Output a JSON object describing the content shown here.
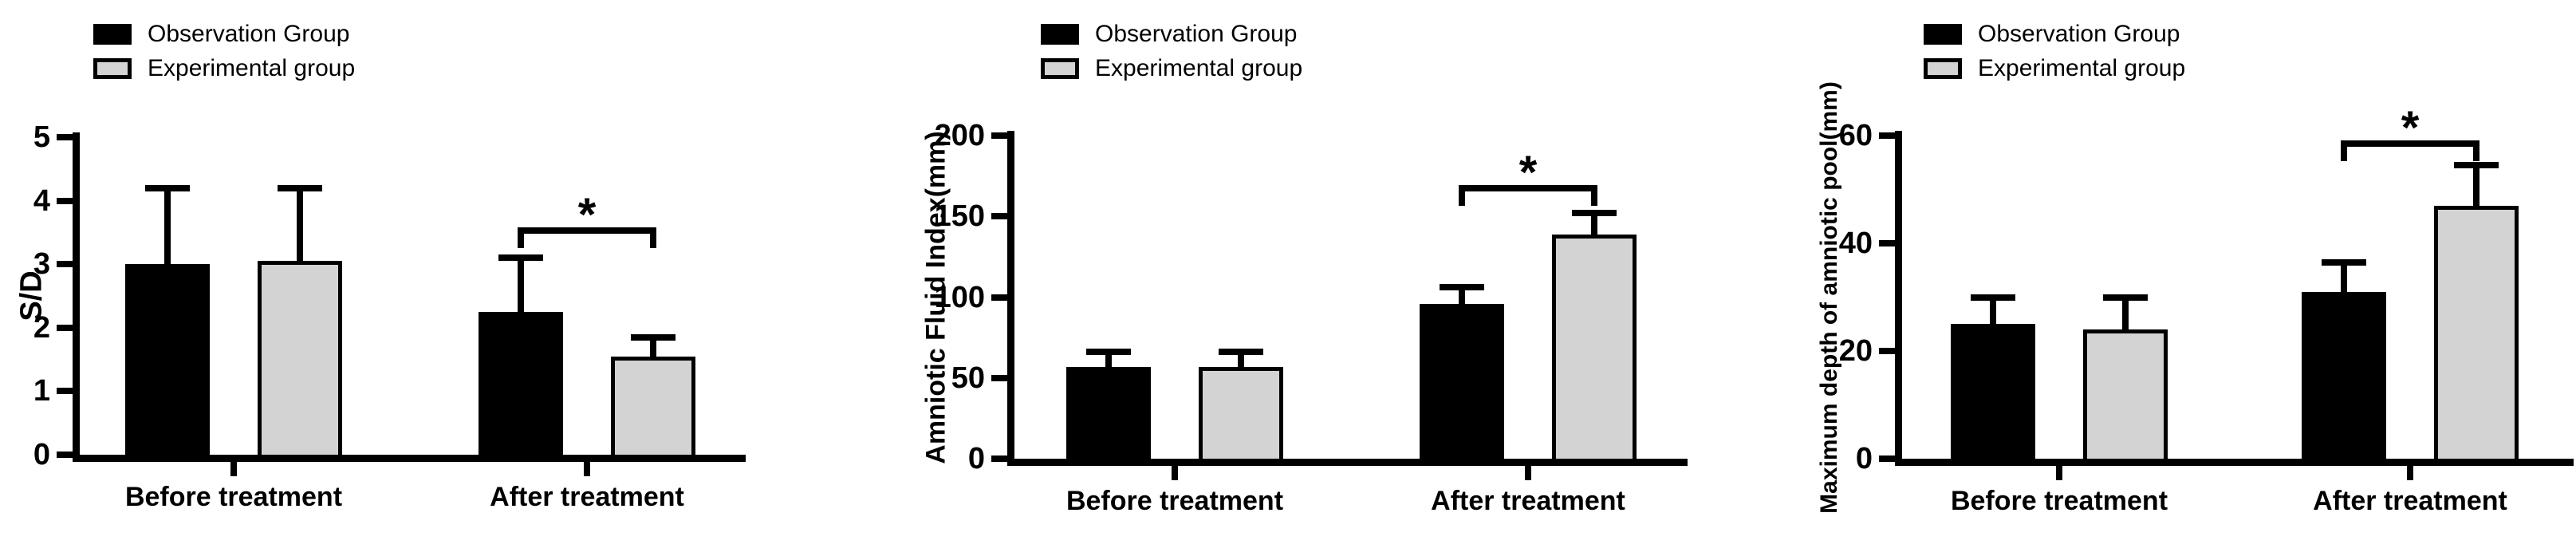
{
  "figure": {
    "background": "#ffffff",
    "ink_color": "#000000",
    "significance_marker": "*"
  },
  "legend": {
    "items": [
      {
        "label": "Observation Group",
        "color": "#000000"
      },
      {
        "label": "Experimental group",
        "color": "#d3d3d3"
      }
    ]
  },
  "chart_data": [
    {
      "type": "bar",
      "title": "",
      "xlabel": "",
      "ylabel": "S/D",
      "ylim": [
        0,
        5
      ],
      "yticks": [
        0,
        1,
        2,
        3,
        4,
        5
      ],
      "categories": [
        "Before treatment",
        "After treatment"
      ],
      "legend_position": "top",
      "grid": false,
      "error_bars": "upper-only",
      "series": [
        {
          "name": "Observation Group",
          "color": "#000000",
          "values": [
            3.0,
            2.25
          ],
          "errors": [
            1.2,
            0.85
          ]
        },
        {
          "name": "Experimental group",
          "color": "#d3d3d3",
          "values": [
            3.05,
            1.55
          ],
          "errors": [
            1.15,
            0.3
          ]
        }
      ],
      "significance": [
        {
          "category_index": 1,
          "between": [
            "Observation Group",
            "Experimental group"
          ],
          "label": "*"
        }
      ]
    },
    {
      "type": "bar",
      "title": "",
      "xlabel": "",
      "ylabel": "Amniotic Fluid Index(mm)",
      "ylim": [
        0,
        200
      ],
      "yticks": [
        0,
        50,
        100,
        150,
        200
      ],
      "categories": [
        "Before treatment",
        "After treatment"
      ],
      "legend_position": "top",
      "grid": false,
      "error_bars": "upper-only",
      "series": [
        {
          "name": "Observation Group",
          "color": "#000000",
          "values": [
            57,
            96
          ],
          "errors": [
            9,
            10
          ]
        },
        {
          "name": "Experimental group",
          "color": "#d3d3d3",
          "values": [
            57,
            139
          ],
          "errors": [
            9,
            13
          ]
        }
      ],
      "significance": [
        {
          "category_index": 1,
          "between": [
            "Observation Group",
            "Experimental group"
          ],
          "label": "*"
        }
      ]
    },
    {
      "type": "bar",
      "title": "",
      "xlabel": "",
      "ylabel": "Maximum depth of amniotic pool(mm)",
      "ylim": [
        0,
        60
      ],
      "yticks": [
        0,
        20,
        40,
        60
      ],
      "categories": [
        "Before treatment",
        "After treatment"
      ],
      "legend_position": "top",
      "grid": false,
      "error_bars": "upper-only",
      "series": [
        {
          "name": "Observation Group",
          "color": "#000000",
          "values": [
            25,
            31
          ],
          "errors": [
            5,
            5.5
          ]
        },
        {
          "name": "Experimental group",
          "color": "#d3d3d3",
          "values": [
            24,
            47
          ],
          "errors": [
            6,
            7.5
          ]
        }
      ],
      "significance": [
        {
          "category_index": 1,
          "between": [
            "Observation Group",
            "Experimental group"
          ],
          "label": "*"
        }
      ]
    }
  ]
}
